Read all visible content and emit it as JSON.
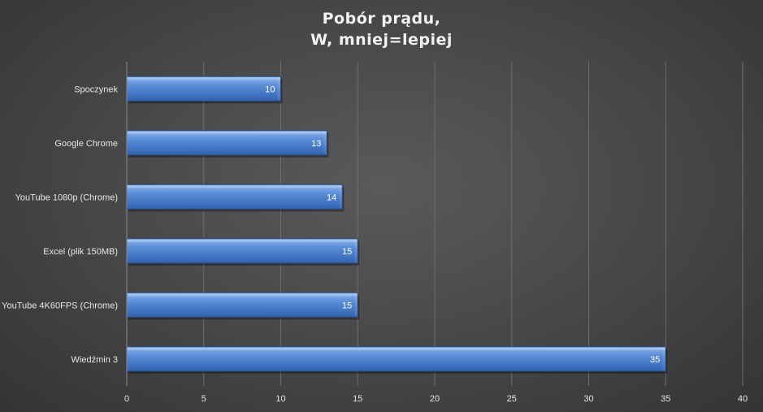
{
  "chart_data": {
    "type": "bar",
    "orientation": "horizontal",
    "title_lines": [
      "Pobór prądu,",
      "W, mniej=lepiej"
    ],
    "categories": [
      "Spoczynek",
      "Google Chrome",
      "YouTube 1080p (Chrome)",
      "Excel (plik 150MB)",
      "YouTube 4K60FPS (Chrome)",
      "Wiedźmin 3"
    ],
    "values": [
      10,
      13,
      14,
      15,
      15,
      35
    ],
    "xlim": [
      0,
      40
    ],
    "xticks": [
      0,
      5,
      10,
      15,
      20,
      25,
      30,
      35,
      40
    ],
    "xlabel": "",
    "ylabel": "",
    "grid": true,
    "data_labels": true,
    "legend": "none",
    "colors": {
      "bar_light": "#6a9be0",
      "bar_mid": "#4a7fcc",
      "bar_dark": "#2f5fa8",
      "bar_edge": "#2a4f86",
      "grid": "#6e6e6e",
      "axis": "#8a8a8a",
      "text": "#e6e6e6"
    }
  }
}
